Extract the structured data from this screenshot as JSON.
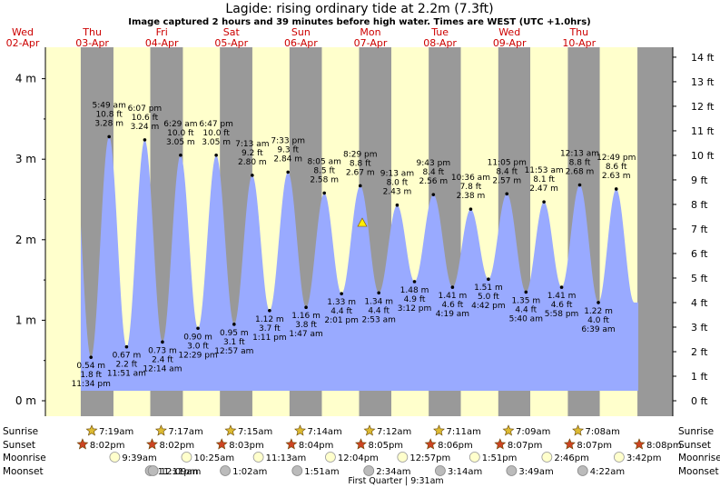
{
  "title": "Lagide: rising  ordinary tide at 2.2m (7.3ft)",
  "subtitle": "Image captured 2 hours and 39 minutes before high water. Times are WEST (UTC +1.0hrs)",
  "colors": {
    "day": "#ffffcc",
    "night": "#999999",
    "water": "#99aaff",
    "sun": "#ddbb33",
    "sunset": "#cc4422"
  },
  "chart_data": {
    "type": "area",
    "title": "Lagide: rising  ordinary tide at 2.2m (7.3ft)",
    "ylabel_left_unit": "m",
    "ylabel_right_unit": "ft",
    "y_ticks_m": [
      "0 m",
      "1 m",
      "2 m",
      "3 m",
      "4 m"
    ],
    "y_ticks_ft": [
      "0 ft",
      "1 ft",
      "2 ft",
      "3 ft",
      "4 ft",
      "5 ft",
      "6 ft",
      "7 ft",
      "8 ft",
      "9 ft",
      "10 ft",
      "11 ft",
      "12 ft",
      "13 ft",
      "14 ft"
    ],
    "ylim_m": [
      0,
      4.27
    ],
    "days": [
      {
        "dow": "Wed",
        "date": "02-Apr"
      },
      {
        "dow": "Thu",
        "date": "03-Apr"
      },
      {
        "dow": "Fri",
        "date": "04-Apr"
      },
      {
        "dow": "Sat",
        "date": "05-Apr"
      },
      {
        "dow": "Sun",
        "date": "06-Apr"
      },
      {
        "dow": "Mon",
        "date": "07-Apr"
      },
      {
        "dow": "Tue",
        "date": "08-Apr"
      },
      {
        "dow": "Wed",
        "date": "09-Apr"
      },
      {
        "dow": "Thu",
        "date": "10-Apr"
      }
    ],
    "tides": [
      {
        "type": "low",
        "time": "11:34 pm",
        "m": "0.54 m",
        "ft": "1.8 ft",
        "h": 0.54,
        "day": 0,
        "hour": 23.57
      },
      {
        "type": "high",
        "time": "5:49 am",
        "m": "3.28 m",
        "ft": "10.8 ft",
        "h": 3.28,
        "day": 1,
        "hour": 5.82
      },
      {
        "type": "low",
        "time": "11:51 am",
        "m": "0.67 m",
        "ft": "2.2 ft",
        "h": 0.67,
        "day": 1,
        "hour": 11.85
      },
      {
        "type": "high",
        "time": "6:07 pm",
        "m": "3.24 m",
        "ft": "10.6 ft",
        "h": 3.24,
        "day": 1,
        "hour": 18.12
      },
      {
        "type": "low",
        "time": "12:14 am",
        "m": "0.73 m",
        "ft": "2.4 ft",
        "h": 0.73,
        "day": 2,
        "hour": 0.23
      },
      {
        "type": "high",
        "time": "6:29 am",
        "m": "3.05 m",
        "ft": "10.0 ft",
        "h": 3.05,
        "day": 2,
        "hour": 6.48
      },
      {
        "type": "low",
        "time": "12:29 pm",
        "m": "0.90 m",
        "ft": "3.0 ft",
        "h": 0.9,
        "day": 2,
        "hour": 12.48
      },
      {
        "type": "high",
        "time": "6:47 pm",
        "m": "3.05 m",
        "ft": "10.0 ft",
        "h": 3.05,
        "day": 2,
        "hour": 18.78
      },
      {
        "type": "low",
        "time": "12:57 am",
        "m": "0.95 m",
        "ft": "3.1 ft",
        "h": 0.95,
        "day": 3,
        "hour": 0.95
      },
      {
        "type": "high",
        "time": "7:13 am",
        "m": "2.80 m",
        "ft": "9.2 ft",
        "h": 2.8,
        "day": 3,
        "hour": 7.22
      },
      {
        "type": "low",
        "time": "1:11 pm",
        "m": "1.12 m",
        "ft": "3.7 ft",
        "h": 1.12,
        "day": 3,
        "hour": 13.18
      },
      {
        "type": "high",
        "time": "7:33 pm",
        "m": "2.84 m",
        "ft": "9.3 ft",
        "h": 2.84,
        "day": 3,
        "hour": 19.55
      },
      {
        "type": "low",
        "time": "1:47 am",
        "m": "1.16 m",
        "ft": "3.8 ft",
        "h": 1.16,
        "day": 4,
        "hour": 1.78
      },
      {
        "type": "high",
        "time": "8:05 am",
        "m": "2.58 m",
        "ft": "8.5 ft",
        "h": 2.58,
        "day": 4,
        "hour": 8.08
      },
      {
        "type": "low",
        "time": "2:01 pm",
        "m": "1.33 m",
        "ft": "4.4 ft",
        "h": 1.33,
        "day": 4,
        "hour": 14.02
      },
      {
        "type": "high",
        "time": "8:29 pm",
        "m": "2.67 m",
        "ft": "8.8 ft",
        "h": 2.67,
        "day": 4,
        "hour": 20.48
      },
      {
        "type": "low",
        "time": "2:53 am",
        "m": "1.34 m",
        "ft": "4.4 ft",
        "h": 1.34,
        "day": 5,
        "hour": 2.88
      },
      {
        "type": "high",
        "time": "9:13 am",
        "m": "2.43 m",
        "ft": "8.0 ft",
        "h": 2.43,
        "day": 5,
        "hour": 9.22
      },
      {
        "type": "low",
        "time": "3:12 pm",
        "m": "1.48 m",
        "ft": "4.9 ft",
        "h": 1.48,
        "day": 5,
        "hour": 15.2
      },
      {
        "type": "high",
        "time": "9:43 pm",
        "m": "2.56 m",
        "ft": "8.4 ft",
        "h": 2.56,
        "day": 5,
        "hour": 21.72
      },
      {
        "type": "low",
        "time": "4:19 am",
        "m": "1.41 m",
        "ft": "4.6 ft",
        "h": 1.41,
        "day": 6,
        "hour": 4.32
      },
      {
        "type": "high",
        "time": "10:36 am",
        "m": "2.38 m",
        "ft": "7.8 ft",
        "h": 2.38,
        "day": 6,
        "hour": 10.6
      },
      {
        "type": "low",
        "time": "4:42 pm",
        "m": "1.51 m",
        "ft": "5.0 ft",
        "h": 1.51,
        "day": 6,
        "hour": 16.7
      },
      {
        "type": "high",
        "time": "11:05 pm",
        "m": "2.57 m",
        "ft": "8.4 ft",
        "h": 2.57,
        "day": 6,
        "hour": 23.08
      },
      {
        "type": "low",
        "time": "5:40 am",
        "m": "1.35 m",
        "ft": "4.4 ft",
        "h": 1.35,
        "day": 7,
        "hour": 5.67
      },
      {
        "type": "high",
        "time": "11:53 am",
        "m": "2.47 m",
        "ft": "8.1 ft",
        "h": 2.47,
        "day": 7,
        "hour": 11.88
      },
      {
        "type": "low",
        "time": "5:58 pm",
        "m": "1.41 m",
        "ft": "4.6 ft",
        "h": 1.41,
        "day": 7,
        "hour": 17.97
      },
      {
        "type": "high",
        "time": "12:13 am",
        "m": "2.68 m",
        "ft": "8.8 ft",
        "h": 2.68,
        "day": 8,
        "hour": 0.22
      },
      {
        "type": "low",
        "time": "6:39 am",
        "m": "1.22 m",
        "ft": "4.0 ft",
        "h": 1.22,
        "day": 8,
        "hour": 6.65
      },
      {
        "type": "high",
        "time": "12:49 pm",
        "m": "2.63 m",
        "ft": "8.6 ft",
        "h": 2.63,
        "day": 8,
        "hour": 12.82
      }
    ],
    "current_level_m": 2.2,
    "sun": [
      {
        "day": 1,
        "rise": "7:19am",
        "set": "8:02pm",
        "rise_h": 7.32,
        "set_h": 20.03
      },
      {
        "day": 2,
        "rise": "7:17am",
        "set": "8:03pm",
        "rise_h": 7.28,
        "set_h": 20.05
      },
      {
        "day": 3,
        "rise": "7:15am",
        "set": "8:04pm",
        "rise_h": 7.25,
        "set_h": 20.07
      },
      {
        "day": 4,
        "rise": "7:14am",
        "set": "8:05pm",
        "rise_h": 7.23,
        "set_h": 20.08
      },
      {
        "day": 5,
        "rise": "7:12am",
        "set": "8:06pm",
        "rise_h": 7.2,
        "set_h": 20.1
      },
      {
        "day": 6,
        "rise": "7:11am",
        "set": "8:07pm",
        "rise_h": 7.18,
        "set_h": 20.12
      },
      {
        "day": 7,
        "rise": "7:09am",
        "set": "8:07pm",
        "rise_h": 7.15,
        "set_h": 20.12
      },
      {
        "day": 8,
        "rise": "7:08am",
        "set": "8:08pm",
        "rise_h": 7.13,
        "set_h": 20.13
      }
    ],
    "sunset_day0": {
      "set": "8:02pm",
      "set_h": 20.03
    },
    "moonrise": [
      {
        "day": 1,
        "time": "9:39am",
        "h": 9.65
      },
      {
        "day": 2,
        "time": "10:25am",
        "h": 10.42
      },
      {
        "day": 3,
        "time": "11:13am",
        "h": 11.22
      },
      {
        "day": 4,
        "time": "12:04pm",
        "h": 12.07
      },
      {
        "day": 5,
        "time": "12:57pm",
        "h": 12.95
      },
      {
        "day": 6,
        "time": "1:51pm",
        "h": 13.85
      },
      {
        "day": 7,
        "time": "2:46pm",
        "h": 14.77
      },
      {
        "day": 8,
        "time": "3:42pm",
        "h": 15.7
      }
    ],
    "moonset": [
      {
        "day": 1,
        "time": "11:11pm",
        "h": 23.18
      },
      {
        "day": 2,
        "time": "12:09am",
        "h": 0.15
      },
      {
        "day": 3,
        "time": "1:02am",
        "h": 1.03
      },
      {
        "day": 4,
        "time": "1:51am",
        "h": 1.85
      },
      {
        "day": 5,
        "time": "2:34am",
        "h": 2.57
      },
      {
        "day": 6,
        "time": "3:14am",
        "h": 3.23
      },
      {
        "day": 7,
        "time": "3:49am",
        "h": 3.82
      },
      {
        "day": 8,
        "time": "4:22am",
        "h": 4.37
      }
    ],
    "row_labels": {
      "sunrise": "Sunrise",
      "sunset": "Sunset",
      "moonrise": "Moonrise",
      "moonset": "Moonset"
    },
    "moon_phase": "First Quarter | 9:31am"
  }
}
